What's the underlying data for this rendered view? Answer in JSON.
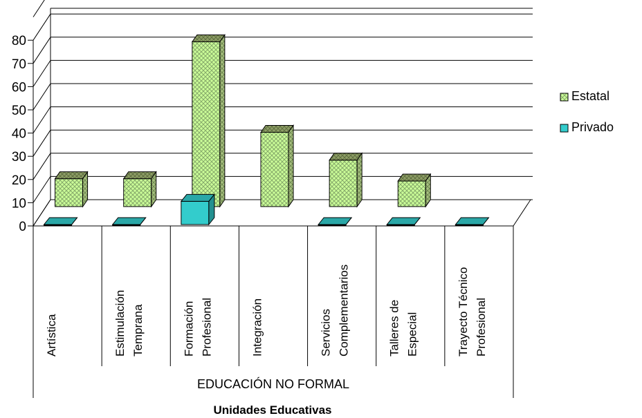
{
  "chart_data": {
    "type": "bar",
    "style": "3d-clustered-column",
    "categories": [
      "Artística",
      "Estimulación Temprana",
      "Formación Profesional",
      "Integración",
      "Servicios Complementarios",
      "Talleres de Especial",
      "Trayecto Técnico Profesional"
    ],
    "category_lines": [
      [
        "Artística"
      ],
      [
        "Estimulación",
        "Temprana"
      ],
      [
        "Formación",
        "Profesional"
      ],
      [
        "Integración"
      ],
      [
        "Servicios",
        "Complementarios"
      ],
      [
        "Talleres de",
        "Especial"
      ],
      [
        "Trayecto Técnico",
        "Profesional"
      ]
    ],
    "group_label": "EDUCACIÓN NO FORMAL",
    "xlabel": "Unidades Educativas",
    "ylim": [
      0,
      80
    ],
    "yticks": [
      "0",
      "10",
      "20",
      "30",
      "40",
      "50",
      "60",
      "70",
      "80"
    ],
    "series": [
      {
        "name": "Privado",
        "values": [
          0,
          0,
          10,
          null,
          0,
          0,
          0
        ],
        "color": "#33CCCC",
        "pattern": "solid"
      },
      {
        "name": "Estatal",
        "values": [
          12,
          12,
          71,
          32,
          20,
          11,
          null
        ],
        "color": "#CCFF99",
        "pattern": "diagonal-cross-hatch"
      }
    ],
    "legend": {
      "position": "right",
      "order": [
        "Estatal",
        "Privado"
      ]
    },
    "grid": true
  }
}
